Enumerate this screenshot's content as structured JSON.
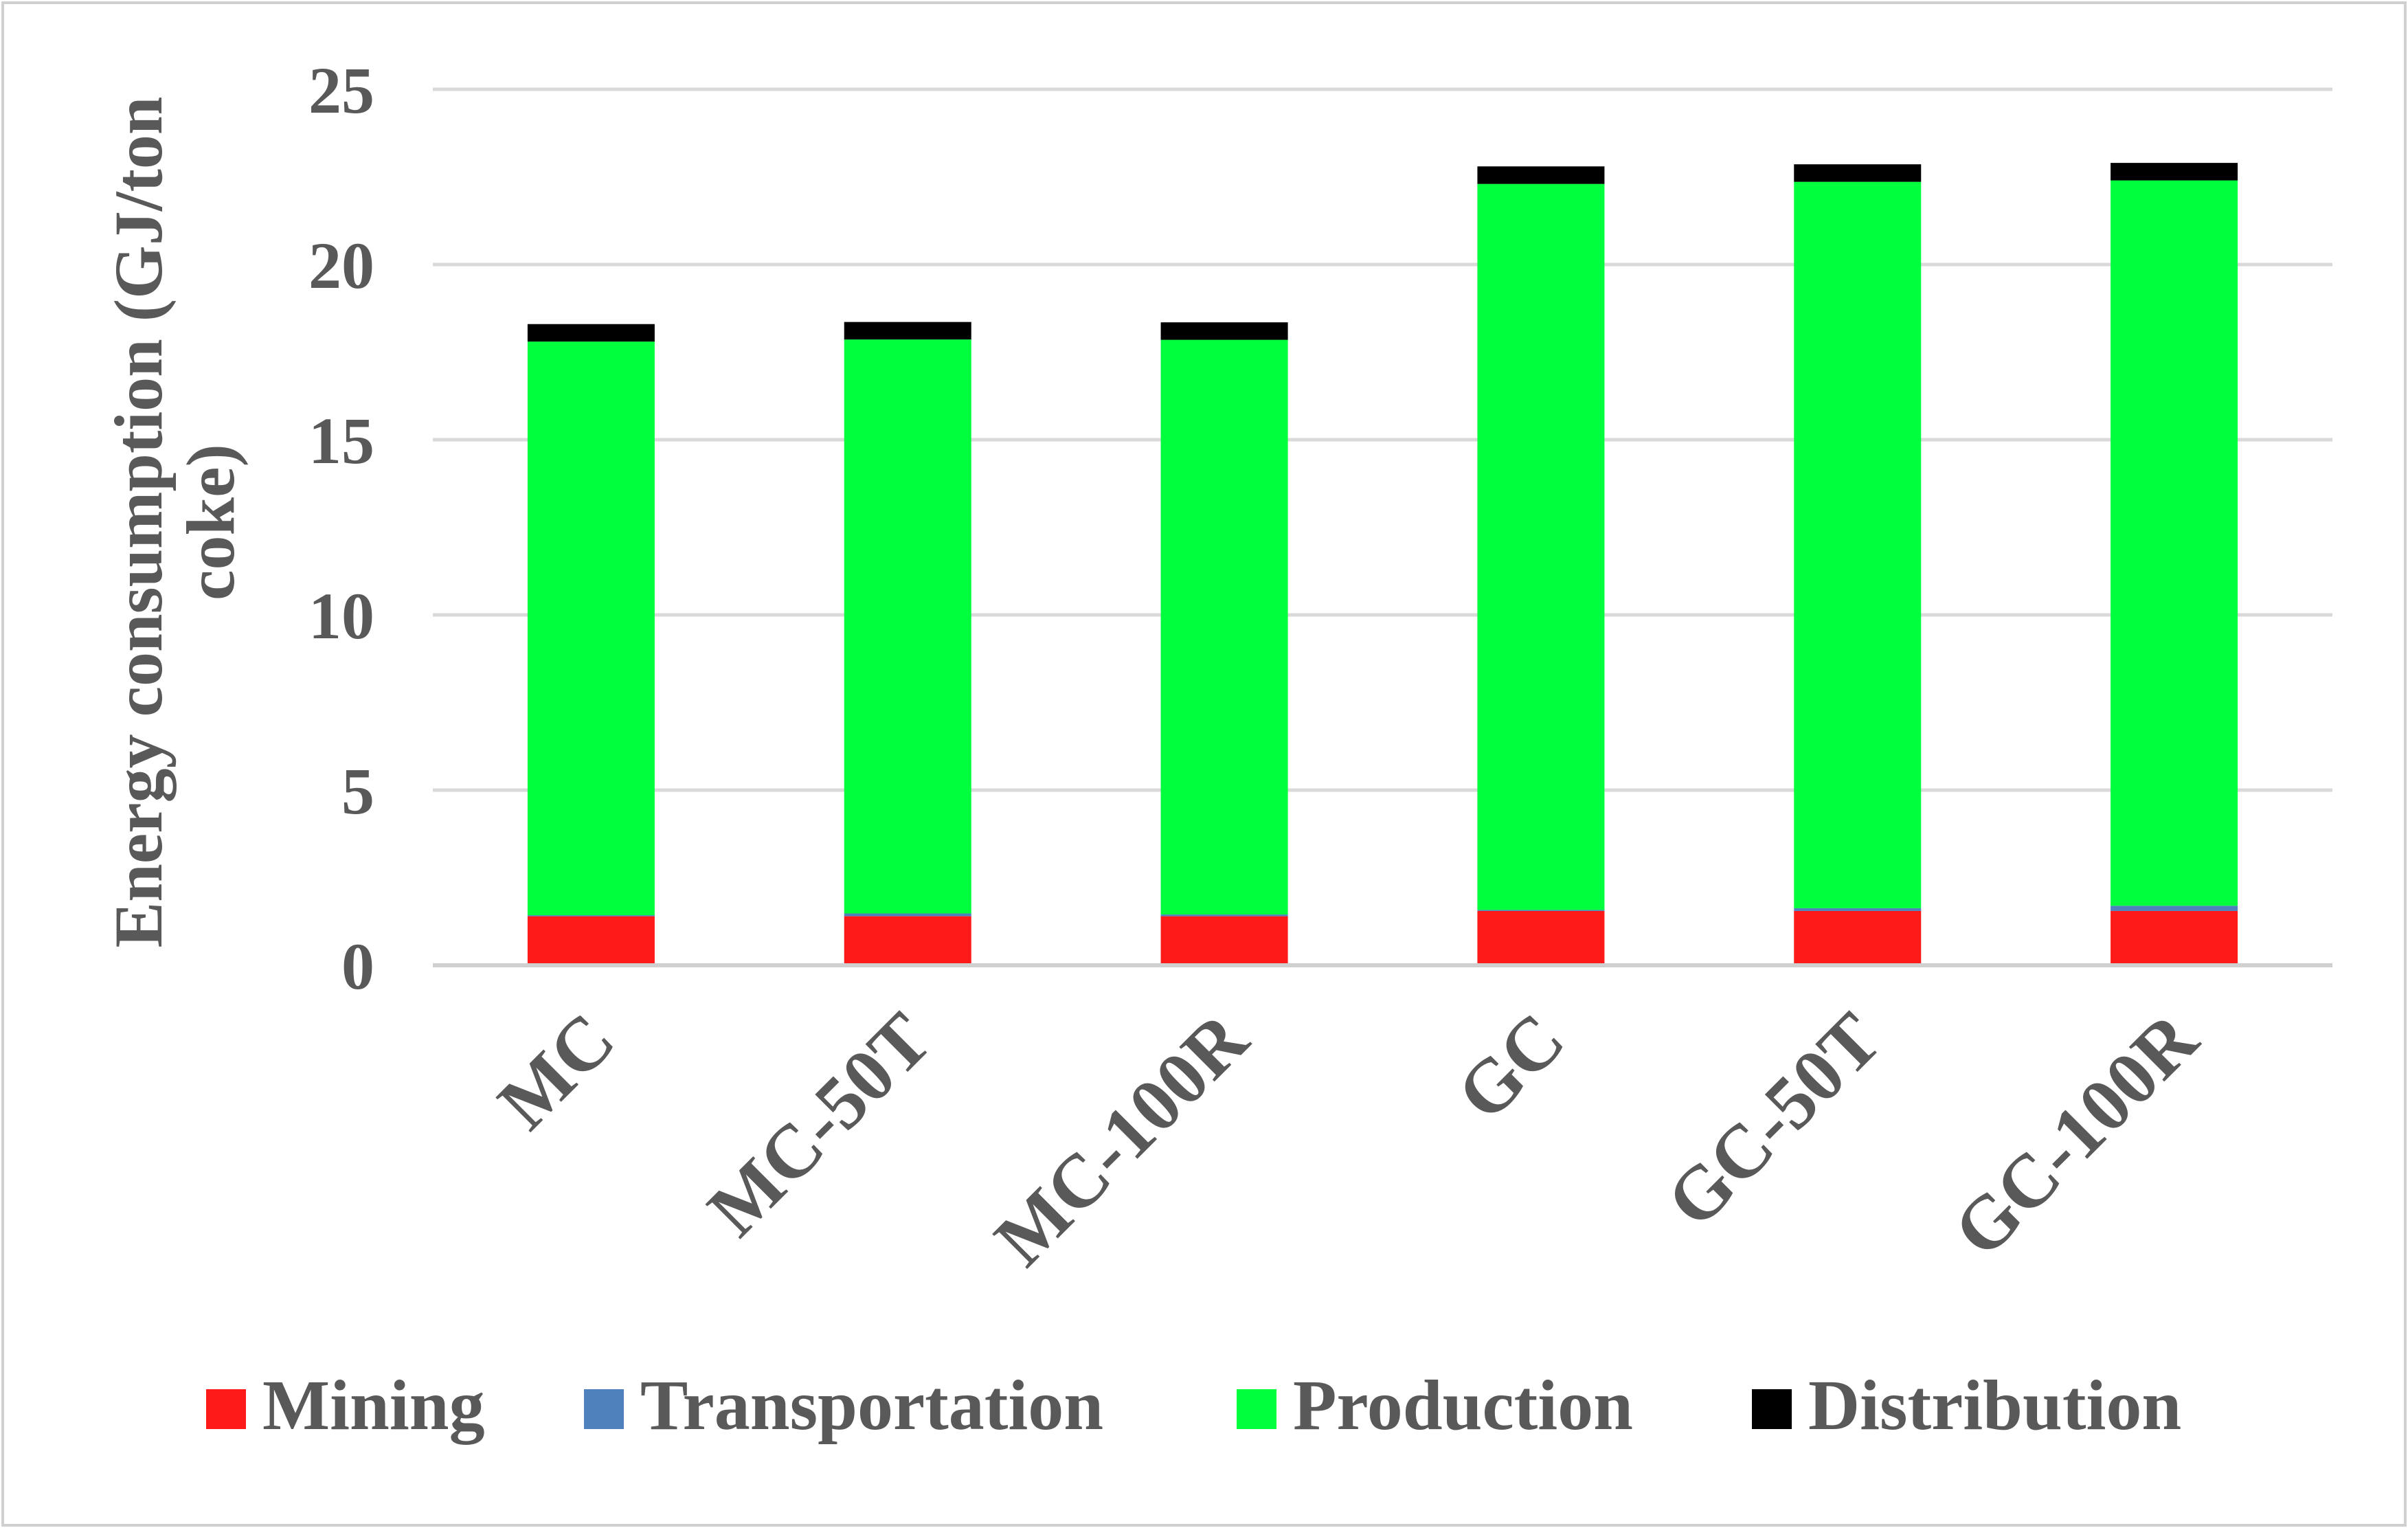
{
  "chart_data": {
    "type": "bar",
    "stacked": true,
    "title": "",
    "xlabel": "",
    "ylabel_lines": [
      "Energy consumption (GJ/ton",
      "coke)"
    ],
    "ylim": [
      0,
      25
    ],
    "yticks": [
      0,
      5,
      10,
      15,
      20,
      25
    ],
    "grid": true,
    "legend_position": "bottom",
    "categories": [
      "MC",
      "MC-50T",
      "MC-100R",
      "GC",
      "GC-50T",
      "GC-100R"
    ],
    "series": [
      {
        "name": "Mining",
        "color": "#ff1a1a",
        "values": [
          1.4,
          1.4,
          1.4,
          1.55,
          1.55,
          1.55
        ]
      },
      {
        "name": "Transportation",
        "color": "#4f81bd",
        "values": [
          0.03,
          0.08,
          0.05,
          0.03,
          0.08,
          0.15
        ]
      },
      {
        "name": "Production",
        "color": "#00ff3c",
        "values": [
          16.37,
          16.38,
          16.4,
          20.72,
          20.73,
          20.7
        ]
      },
      {
        "name": "Distribution",
        "color": "#000000",
        "values": [
          0.5,
          0.5,
          0.5,
          0.5,
          0.5,
          0.5
        ]
      }
    ]
  }
}
